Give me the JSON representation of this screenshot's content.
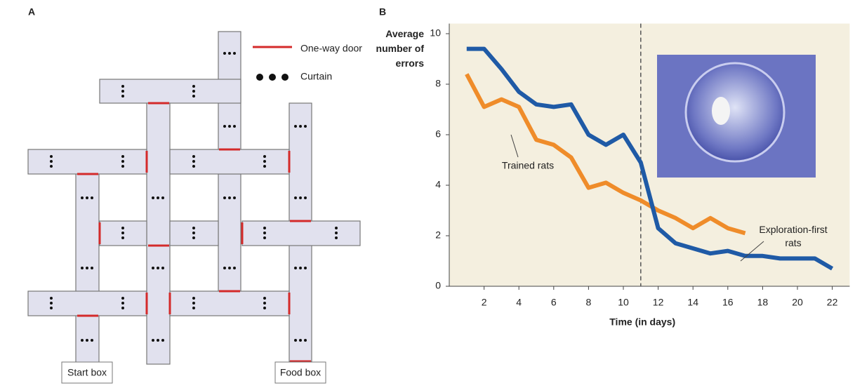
{
  "maze": {
    "panel_label": "A",
    "legend_door": "One-way door",
    "legend_curtain": "Curtain",
    "start": "Start box",
    "food": "Food box"
  },
  "chart_data": {
    "type": "line",
    "panel_label": "B",
    "ylabel": "Average number of errors",
    "xlabel": "Time (in days)",
    "x": [
      1,
      2,
      3,
      4,
      5,
      6,
      7,
      8,
      9,
      10,
      11,
      12,
      13,
      14,
      15,
      16,
      17,
      18,
      19,
      20,
      21,
      22
    ],
    "series": [
      {
        "name": "Exploration-first rats",
        "color": "#1f5aa6",
        "values": [
          9.4,
          9.4,
          8.6,
          7.7,
          7.2,
          7.1,
          7.2,
          6.0,
          5.6,
          6.0,
          4.9,
          2.3,
          1.7,
          1.5,
          1.3,
          1.4,
          1.2,
          1.2,
          1.1,
          1.1,
          1.1,
          0.7
        ]
      },
      {
        "name": "Trained rats",
        "color": "#ef8c2a",
        "values": [
          8.4,
          7.1,
          7.4,
          7.1,
          5.8,
          5.6,
          5.1,
          3.9,
          4.1,
          3.7,
          3.4,
          3.0,
          2.7,
          2.3,
          2.7,
          2.3,
          2.1,
          null,
          null,
          null,
          null,
          null
        ]
      }
    ],
    "xlim": [
      0,
      23
    ],
    "ylim": [
      0,
      10.4
    ],
    "xticks": [
      2,
      4,
      6,
      8,
      10,
      12,
      14,
      16,
      18,
      20,
      22
    ],
    "yticks": [
      0,
      2,
      4,
      6,
      8,
      10
    ],
    "divider_x": 11,
    "background": "#f4efdf"
  }
}
